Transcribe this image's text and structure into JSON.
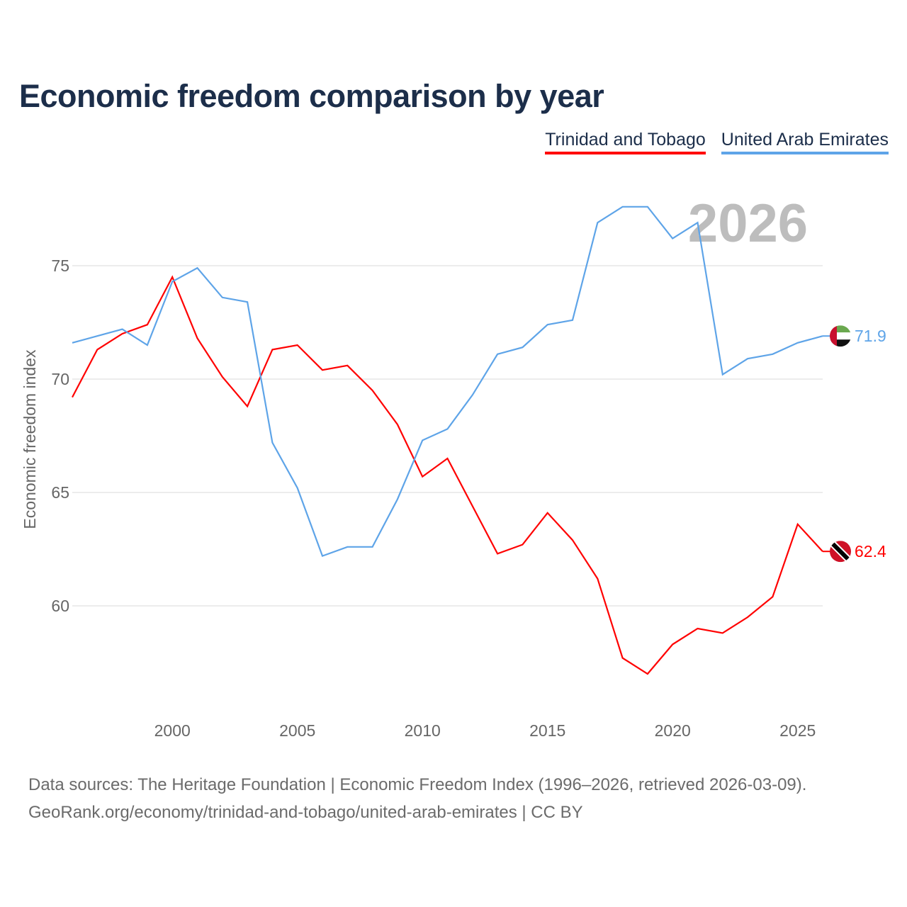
{
  "chart_data": {
    "type": "line",
    "title": "Economic freedom comparison by year",
    "xlabel": "",
    "ylabel": "Economic freedom index",
    "xlim": [
      1996,
      2026
    ],
    "ylim": [
      55,
      79
    ],
    "x_ticks": [
      2000,
      2005,
      2010,
      2015,
      2020,
      2025
    ],
    "y_ticks": [
      60,
      65,
      70,
      75
    ],
    "grid": true,
    "legend_position": "top-right",
    "year_label": "2026",
    "x": [
      1996,
      1997,
      1998,
      1999,
      2000,
      2001,
      2002,
      2003,
      2004,
      2005,
      2006,
      2007,
      2008,
      2009,
      2010,
      2011,
      2012,
      2013,
      2014,
      2015,
      2016,
      2017,
      2018,
      2019,
      2020,
      2021,
      2022,
      2023,
      2024,
      2025,
      2026
    ],
    "series": [
      {
        "name": "Trinidad and Tobago",
        "color": "#ff0000",
        "end_label": "62.4",
        "flag": "trinidad-and-tobago",
        "values": [
          69.2,
          71.3,
          72.0,
          72.4,
          74.5,
          71.8,
          70.1,
          68.8,
          71.3,
          71.5,
          70.4,
          70.6,
          69.5,
          68.0,
          65.7,
          66.5,
          64.4,
          62.3,
          62.7,
          64.1,
          62.9,
          61.2,
          57.7,
          57.0,
          58.3,
          59.0,
          58.8,
          59.5,
          60.4,
          63.6,
          62.4
        ]
      },
      {
        "name": "United Arab Emirates",
        "color": "#5ea4e8",
        "end_label": "71.9",
        "flag": "united-arab-emirates",
        "values": [
          71.6,
          71.9,
          72.2,
          71.5,
          74.3,
          74.9,
          73.6,
          73.4,
          67.2,
          65.2,
          62.2,
          62.6,
          62.6,
          64.7,
          67.3,
          67.8,
          69.3,
          71.1,
          71.4,
          72.4,
          72.6,
          76.9,
          77.6,
          77.6,
          76.2,
          76.9,
          70.2,
          70.9,
          71.1,
          71.6,
          71.9
        ]
      }
    ]
  },
  "source_lines": [
    "Data sources: The Heritage Foundation | Economic Freedom Index (1996–2026, retrieved 2026-03-09).",
    "GeoRank.org/economy/trinidad-and-tobago/united-arab-emirates | CC BY"
  ]
}
